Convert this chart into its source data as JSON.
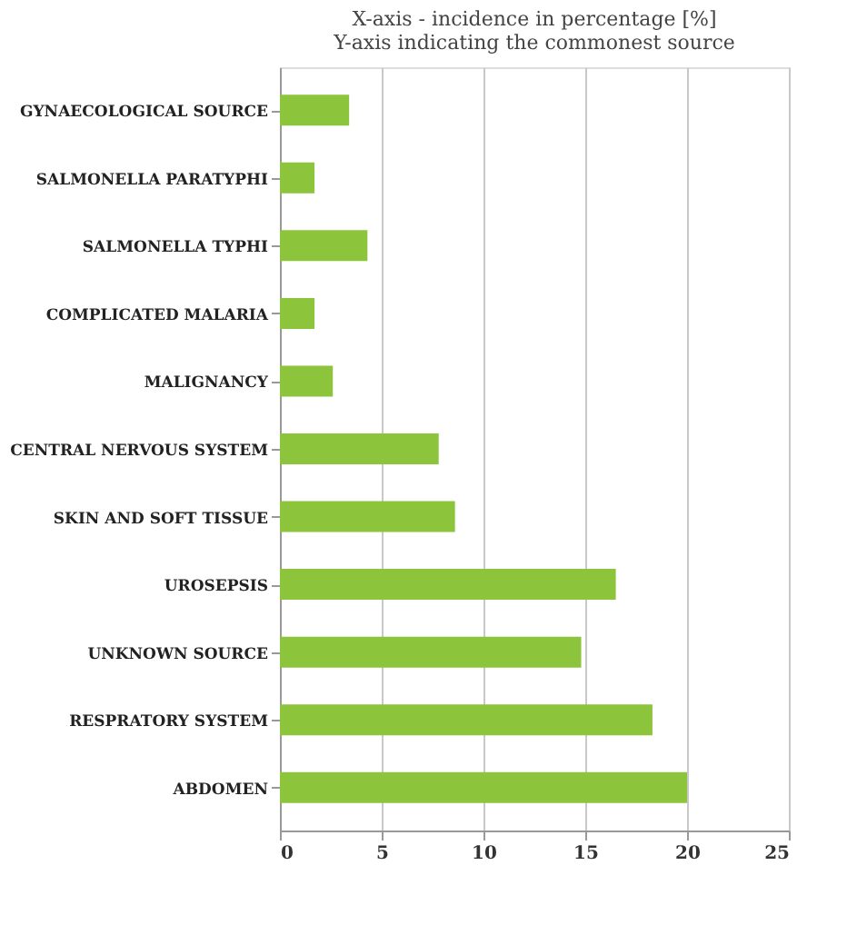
{
  "chart_data": {
    "type": "bar",
    "orientation": "horizontal",
    "subtitle": "X-axis - incidence in percentage [%]\nY-axis indicating the commonest source",
    "categories": [
      "GYNAECOLOGICAL SOURCE",
      "SALMONELLA PARATYPHI",
      "SALMONELLA TYPHI",
      "COMPLICATED MALARIA",
      "MALIGNANCY",
      "CENTRAL NERVOUS SYSTEM",
      "SKIN AND SOFT TISSUE",
      "UROSEPSIS",
      "UNKNOWN SOURCE",
      "RESPRATORY SYSTEM",
      "ABDOMEN"
    ],
    "values": [
      3.4,
      1.7,
      4.3,
      1.7,
      2.6,
      7.8,
      8.6,
      16.5,
      14.8,
      18.3,
      20.0
    ],
    "color": "#8cc43c",
    "xlim": [
      0,
      25
    ],
    "xticks": [
      0,
      5,
      10,
      15,
      20,
      25
    ],
    "grid": "x"
  }
}
